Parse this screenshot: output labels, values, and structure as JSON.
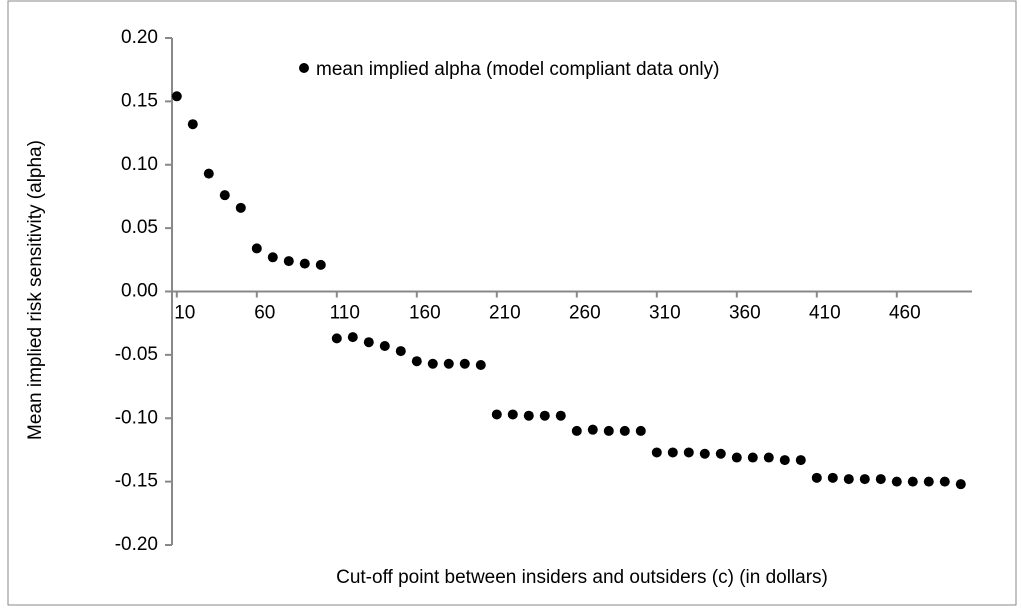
{
  "chart_data": {
    "type": "scatter",
    "y_label": "Mean implied risk sensitivity (alpha)",
    "x_label": "Cut-off point between  insiders and outsiders (c) (in dollars)",
    "x": [
      10,
      20,
      30,
      40,
      50,
      60,
      70,
      80,
      90,
      100,
      110,
      120,
      130,
      140,
      150,
      160,
      170,
      180,
      190,
      200,
      210,
      220,
      230,
      240,
      250,
      260,
      270,
      280,
      290,
      300,
      310,
      320,
      330,
      340,
      350,
      360,
      370,
      380,
      390,
      400,
      410,
      420,
      430,
      440,
      450,
      460,
      470,
      480,
      490,
      500
    ],
    "series": [
      {
        "name": "mean implied alpha (model compliant data only)",
        "color": "#000000",
        "values": [
          0.154,
          0.132,
          0.093,
          0.076,
          0.066,
          0.034,
          0.027,
          0.024,
          0.022,
          0.021,
          -0.037,
          -0.036,
          -0.04,
          -0.043,
          -0.047,
          -0.055,
          -0.057,
          -0.057,
          -0.057,
          -0.058,
          -0.097,
          -0.097,
          -0.098,
          -0.098,
          -0.098,
          -0.11,
          -0.109,
          -0.11,
          -0.11,
          -0.11,
          -0.127,
          -0.127,
          -0.127,
          -0.128,
          -0.128,
          -0.131,
          -0.131,
          -0.131,
          -0.133,
          -0.133,
          -0.147,
          -0.147,
          -0.148,
          -0.148,
          -0.148,
          -0.15,
          -0.15,
          -0.15,
          -0.15,
          -0.152
        ]
      }
    ],
    "xlim": [
      7,
      507
    ],
    "xticks": [
      10,
      60,
      110,
      160,
      210,
      260,
      310,
      360,
      410,
      460
    ],
    "ylim": [
      -0.2,
      0.2
    ],
    "yticks": [
      {
        "value": 0.2,
        "label": "0.20"
      },
      {
        "value": 0.15,
        "label": "0.15"
      },
      {
        "value": 0.1,
        "label": "0.10"
      },
      {
        "value": 0.05,
        "label": "0.05"
      },
      {
        "value": 0,
        "label": "0.00"
      },
      {
        "value": -0.05,
        "label": "-0.05"
      },
      {
        "value": -0.1,
        "label": "-0.10"
      },
      {
        "value": -0.15,
        "label": "-0.15"
      },
      {
        "value": -0.2,
        "label": "-0.20"
      }
    ]
  }
}
